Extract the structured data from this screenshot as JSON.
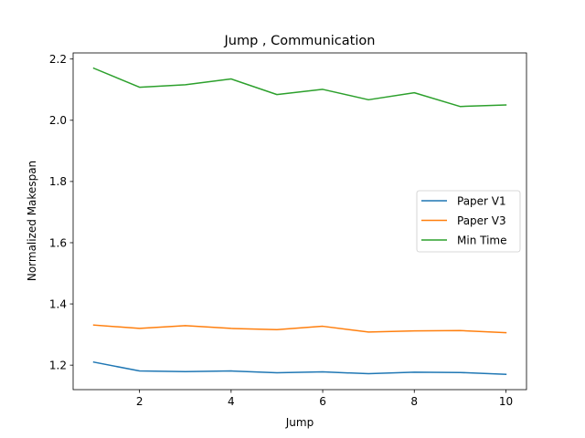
{
  "chart_data": {
    "type": "line",
    "title": "Jump , Communication",
    "xlabel": "Jump",
    "ylabel": "Normalized Makespan",
    "x": [
      1,
      2,
      3,
      4,
      5,
      6,
      7,
      8,
      9,
      10
    ],
    "xlim": [
      0.55,
      10.45
    ],
    "ylim": [
      1.12,
      2.22
    ],
    "xticks": [
      2,
      4,
      6,
      8,
      10
    ],
    "yticks": [
      1.2,
      1.4,
      1.6,
      1.8,
      2.0,
      2.2
    ],
    "ytick_labels": [
      "1.2",
      "1.4",
      "1.6",
      "1.8",
      "2.0",
      "2.2"
    ],
    "grid": false,
    "legend_position": "center-right",
    "series": [
      {
        "name": "Paper V1",
        "color": "#1f77b4",
        "values": [
          1.21,
          1.181,
          1.179,
          1.181,
          1.175,
          1.178,
          1.172,
          1.177,
          1.176,
          1.17
        ]
      },
      {
        "name": "Paper V3",
        "color": "#ff7f0e",
        "values": [
          1.331,
          1.32,
          1.329,
          1.32,
          1.316,
          1.327,
          1.308,
          1.312,
          1.313,
          1.306
        ]
      },
      {
        "name": "Min Time",
        "color": "#2ca02c",
        "values": [
          2.17,
          2.108,
          2.116,
          2.135,
          2.084,
          2.101,
          2.067,
          2.09,
          2.045,
          2.05
        ]
      }
    ]
  }
}
